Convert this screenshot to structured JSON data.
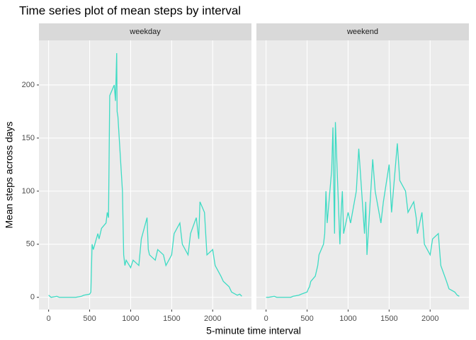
{
  "chart_data": {
    "type": "line",
    "title": "Time series plot of mean steps by interval",
    "x_label": "5-minute time interval",
    "y_label": "Mean steps across days",
    "facets": true,
    "grid": true,
    "xlim": [
      -117.75,
      2472.75
    ],
    "ylim": [
      -11.5,
      242
    ],
    "xticks": [
      0,
      500,
      1000,
      1500,
      2000
    ],
    "yticks": [
      0,
      50,
      100,
      150,
      200
    ],
    "x": [
      0,
      30,
      100,
      130,
      200,
      230,
      300,
      330,
      400,
      430,
      500,
      515,
      530,
      545,
      600,
      615,
      630,
      645,
      700,
      715,
      730,
      745,
      800,
      815,
      830,
      835,
      845,
      900,
      915,
      930,
      945,
      1000,
      1030,
      1100,
      1130,
      1200,
      1215,
      1230,
      1300,
      1330,
      1400,
      1430,
      1500,
      1530,
      1600,
      1630,
      1700,
      1730,
      1800,
      1830,
      1845,
      1900,
      1930,
      2000,
      2030,
      2100,
      2130,
      2200,
      2230,
      2300,
      2330,
      2355
    ],
    "series": [
      {
        "name": "weekday",
        "color": "#3ddbc4",
        "values": [
          2,
          0,
          1,
          0,
          0,
          0,
          0,
          0,
          1,
          2,
          3,
          5,
          50,
          45,
          60,
          55,
          60,
          65,
          70,
          80,
          75,
          190,
          200,
          185,
          230,
          175,
          170,
          100,
          40,
          30,
          35,
          28,
          35,
          30,
          55,
          75,
          45,
          40,
          35,
          45,
          40,
          30,
          40,
          60,
          70,
          50,
          40,
          60,
          75,
          55,
          90,
          80,
          40,
          45,
          30,
          20,
          15,
          10,
          5,
          2,
          3,
          1
        ]
      },
      {
        "name": "weekend",
        "color": "#3ddbc4",
        "values": [
          0,
          0,
          1,
          0,
          0,
          0,
          0,
          1,
          2,
          3,
          5,
          8,
          10,
          15,
          20,
          25,
          30,
          40,
          50,
          60,
          100,
          70,
          120,
          160,
          80,
          60,
          165,
          50,
          80,
          100,
          60,
          80,
          70,
          100,
          140,
          60,
          90,
          40,
          130,
          100,
          70,
          90,
          125,
          80,
          145,
          110,
          100,
          80,
          90,
          75,
          60,
          80,
          50,
          40,
          55,
          60,
          30,
          15,
          8,
          5,
          2,
          1
        ]
      }
    ]
  }
}
